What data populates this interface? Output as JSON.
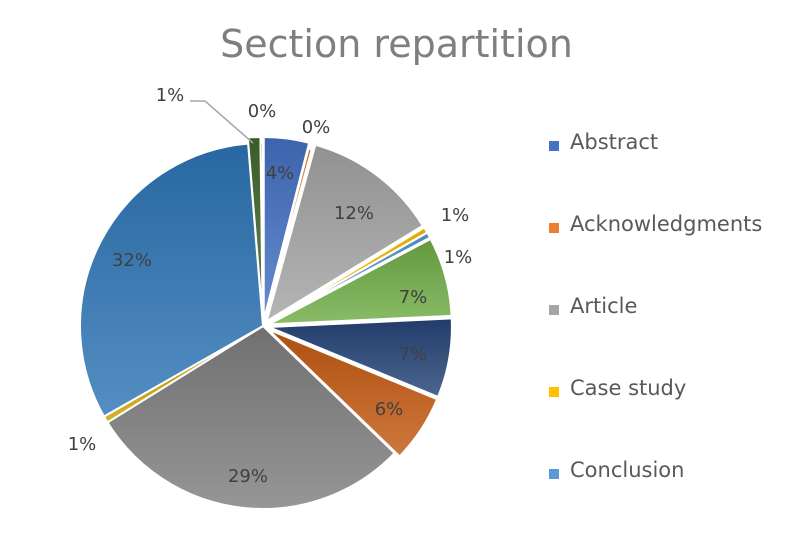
{
  "chart_data": {
    "type": "pie",
    "title": "Section repartition",
    "slices": [
      {
        "label": "4%",
        "value": 4,
        "color": "#4472c4"
      },
      {
        "label": "0%",
        "value": 0.3,
        "color": "#ed7d31"
      },
      {
        "label": "12%",
        "value": 12,
        "color": "#a5a5a5"
      },
      {
        "label": "1%",
        "value": 0.5,
        "color": "#ffc000"
      },
      {
        "label": "1%",
        "value": 0.5,
        "color": "#5b9bd5"
      },
      {
        "label": "7%",
        "value": 7,
        "color": "#70ad47"
      },
      {
        "label": "7%",
        "value": 7,
        "color": "#264478"
      },
      {
        "label": "6%",
        "value": 6,
        "color": "#c55a11"
      },
      {
        "label": "29%",
        "value": 29,
        "color": "#7f7f7f"
      },
      {
        "label": "1%",
        "value": 0.6,
        "color": "#c9a100"
      },
      {
        "label": "32%",
        "value": 32,
        "color": "#2e75b6"
      },
      {
        "label": "1%",
        "value": 1.1,
        "color": "#43682b"
      },
      {
        "label": "0%",
        "value": 0.2,
        "color": "#9e480e"
      }
    ],
    "legend": {
      "position": "right",
      "entries": [
        {
          "name": "Abstract",
          "color": "#4472c4"
        },
        {
          "name": "Acknowledgments",
          "color": "#ed7d31"
        },
        {
          "name": "Article",
          "color": "#a5a5a5"
        },
        {
          "name": "Case study",
          "color": "#ffc000"
        },
        {
          "name": "Conclusion",
          "color": "#5b9bd5"
        }
      ]
    }
  }
}
